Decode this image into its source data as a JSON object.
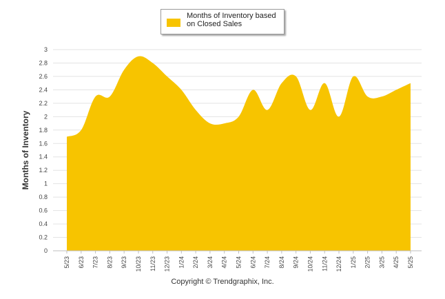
{
  "chart_data": {
    "type": "area",
    "ylabel": "Months of Inventory",
    "xlabel": "",
    "ylim": [
      0,
      3
    ],
    "y_ticks": [
      "0",
      "0.2",
      "0.4",
      "0.6",
      "0.8",
      "1",
      "1.2",
      "1.4",
      "1.6",
      "1.8",
      "2",
      "2.2",
      "2.4",
      "2.6",
      "2.8",
      "3"
    ],
    "categories": [
      "5/23",
      "6/23",
      "7/23",
      "8/23",
      "9/23",
      "10/23",
      "11/23",
      "12/23",
      "1/24",
      "2/24",
      "3/24",
      "4/24",
      "5/24",
      "6/24",
      "7/24",
      "8/24",
      "9/24",
      "10/24",
      "11/24",
      "12/24",
      "1/25",
      "2/25",
      "3/25",
      "4/25",
      "5/25"
    ],
    "series": [
      {
        "name": "Months of Inventory based on Closed Sales",
        "color": "#f7c400",
        "values": [
          1.7,
          1.8,
          2.3,
          2.3,
          2.7,
          2.9,
          2.8,
          2.6,
          2.4,
          2.1,
          1.9,
          1.9,
          2.0,
          2.4,
          2.1,
          2.5,
          2.6,
          2.1,
          2.5,
          2.0,
          2.6,
          2.3,
          2.3,
          2.4,
          2.5
        ]
      }
    ],
    "grid": true,
    "legend_position": "top-center"
  },
  "legend": {
    "label": "Months of Inventory based\non Closed Sales",
    "color": "#f7c400"
  },
  "footer": {
    "copyright": "Copyright © Trendgraphix, Inc."
  }
}
